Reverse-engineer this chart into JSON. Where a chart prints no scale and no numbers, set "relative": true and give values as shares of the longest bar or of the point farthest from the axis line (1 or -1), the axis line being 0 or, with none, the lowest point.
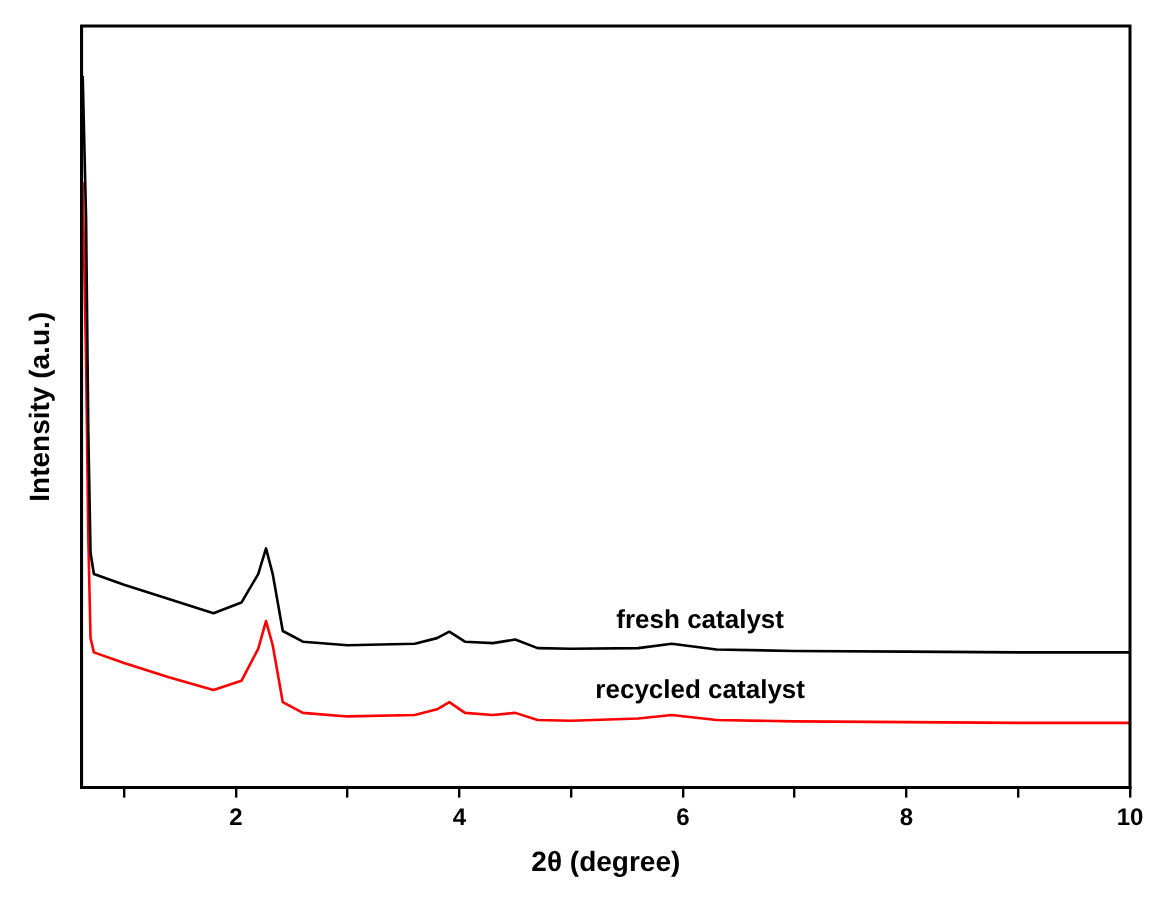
{
  "chart_data": {
    "type": "line",
    "xlabel": "2θ (degree)",
    "ylabel": "Intensity (a.u.)",
    "relative": true,
    "xlim": [
      0.62,
      10
    ],
    "xticks": [
      {
        "value": 1,
        "label": null
      },
      2,
      {
        "value": 3,
        "label": null
      },
      4,
      {
        "value": 5,
        "label": null
      },
      6,
      {
        "value": 7,
        "label": null
      },
      8,
      {
        "value": 9,
        "label": null
      },
      10
    ],
    "grid": false,
    "legend": false,
    "marker": "none",
    "line_style": "solid",
    "series": [
      {
        "name": "fresh catalyst",
        "color": "#000000",
        "x": [
          0.63,
          0.66,
          0.68,
          0.7,
          0.73,
          1.0,
          1.4,
          1.8,
          2.05,
          2.2,
          2.27,
          2.33,
          2.42,
          2.6,
          3.0,
          3.6,
          3.8,
          3.91,
          4.05,
          4.3,
          4.5,
          4.7,
          5.0,
          5.6,
          5.9,
          6.3,
          7,
          8,
          9,
          10
        ],
        "values": [
          1.0,
          0.8,
          0.5,
          0.33,
          0.3,
          0.285,
          0.265,
          0.245,
          0.26,
          0.3,
          0.336,
          0.3,
          0.22,
          0.205,
          0.2,
          0.202,
          0.21,
          0.219,
          0.205,
          0.203,
          0.208,
          0.196,
          0.195,
          0.196,
          0.202,
          0.194,
          0.192,
          0.191,
          0.19,
          0.19
        ]
      },
      {
        "name": "recycled catalyst",
        "color": "#ff0000",
        "x": [
          0.63,
          0.66,
          0.68,
          0.7,
          0.73,
          1.0,
          1.4,
          1.8,
          2.05,
          2.2,
          2.27,
          2.33,
          2.42,
          2.6,
          3.0,
          3.6,
          3.8,
          3.91,
          4.05,
          4.3,
          4.5,
          4.7,
          5.0,
          5.6,
          5.9,
          6.3,
          7,
          8,
          9,
          10
        ],
        "values": [
          0.85,
          0.6,
          0.35,
          0.21,
          0.19,
          0.175,
          0.155,
          0.137,
          0.15,
          0.195,
          0.234,
          0.2,
          0.12,
          0.105,
          0.1,
          0.102,
          0.11,
          0.12,
          0.105,
          0.102,
          0.105,
          0.095,
          0.094,
          0.097,
          0.102,
          0.095,
          0.093,
          0.092,
          0.091,
          0.091
        ]
      }
    ]
  }
}
